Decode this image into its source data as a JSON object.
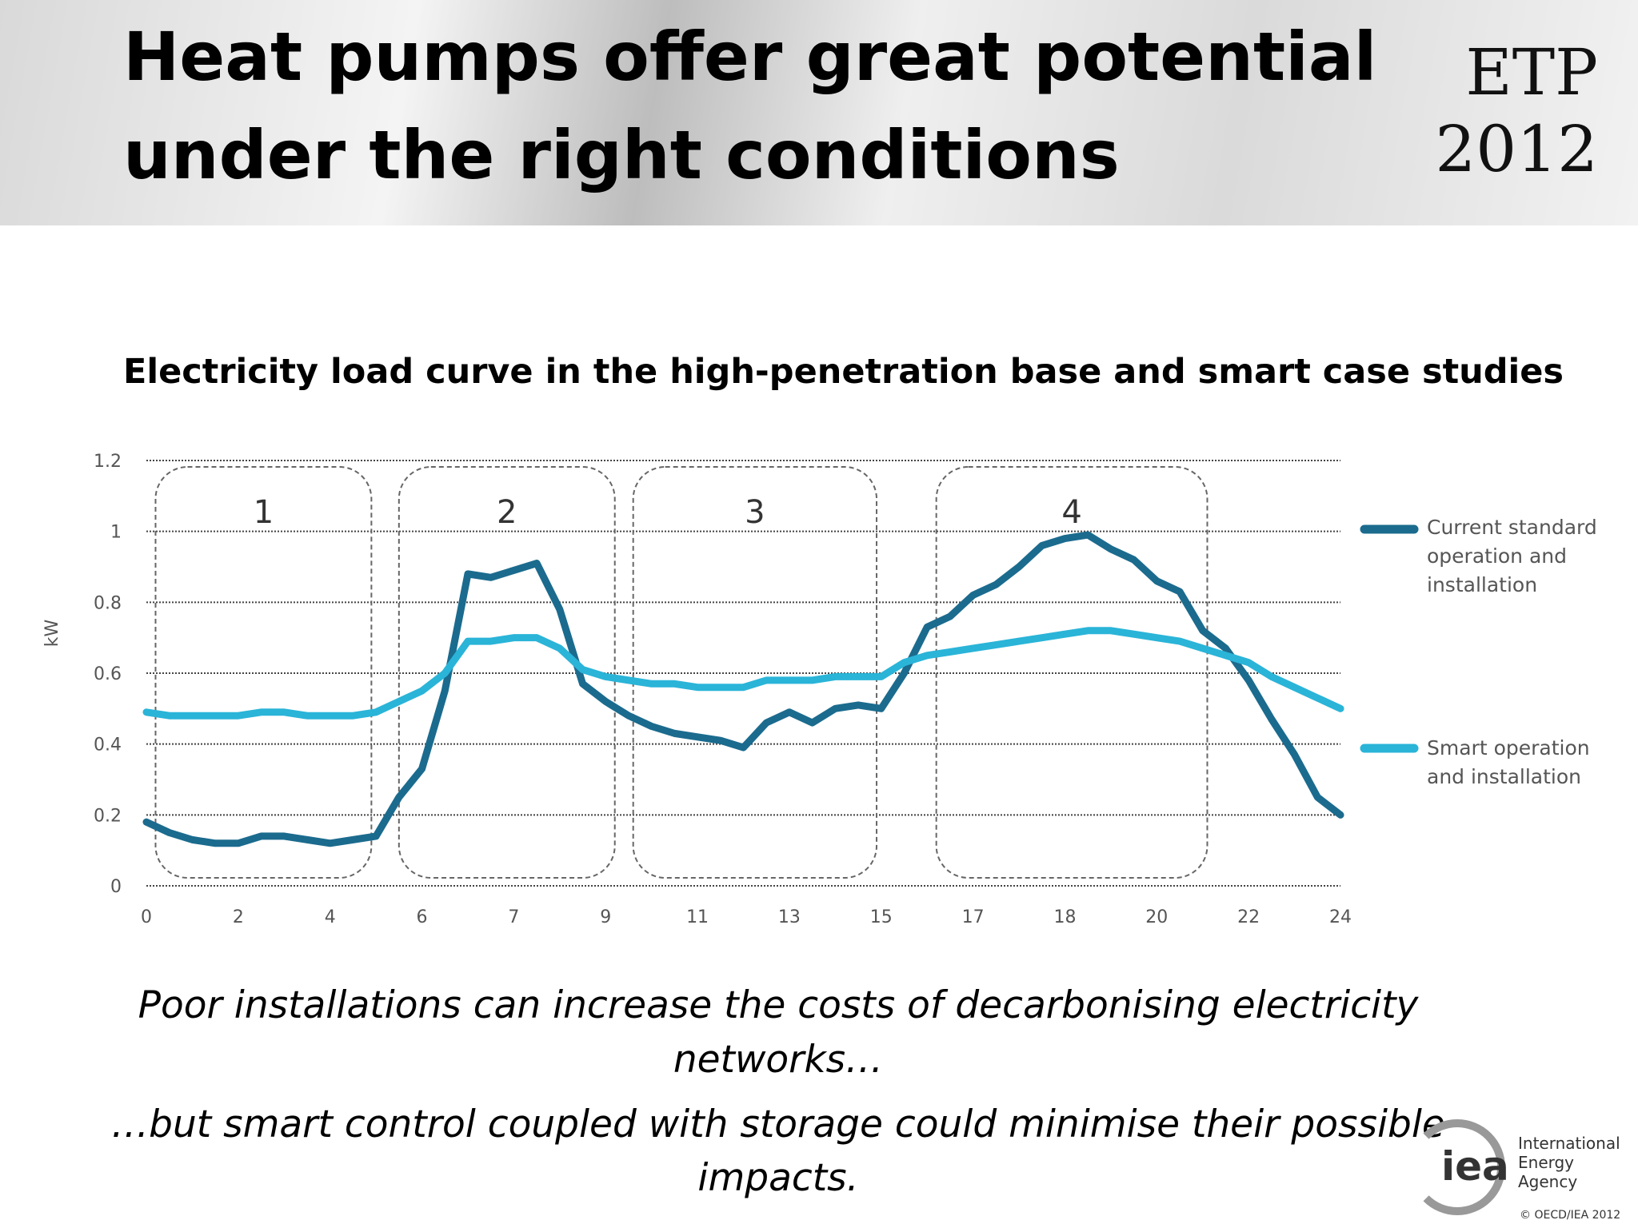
{
  "title": [
    "Heat pumps offer great potential",
    "under the right conditions"
  ],
  "logo": {
    "line1": "ETP",
    "line2": "2012"
  },
  "chart_data": {
    "type": "line",
    "title": "Electricity load curve in the high-penetration base and smart case studies",
    "y_label": "kW",
    "x": [
      0,
      0.25,
      0.5,
      0.75,
      1,
      1.25,
      1.5,
      1.75,
      2,
      2.25,
      2.5,
      2.75,
      3,
      3.25,
      3.5,
      3.75,
      4,
      4.25,
      4.5,
      4.75,
      5,
      5.25,
      5.5,
      5.75,
      6,
      6.25,
      6.5,
      6.75,
      7,
      7.25,
      7.5,
      7.75,
      8,
      8.25,
      8.5,
      8.75,
      9,
      9.25,
      9.5,
      9.75,
      10,
      10.25,
      10.5,
      10.75,
      11,
      11.25,
      11.5,
      11.75,
      12,
      12.25,
      12.5,
      12.75,
      13
    ],
    "xlim": [
      0,
      13
    ],
    "xticks": [
      0,
      {
        "value": 1,
        "label": "2"
      },
      {
        "value": 2,
        "label": "4"
      },
      {
        "value": 3,
        "label": "6"
      },
      {
        "value": 4,
        "label": "7"
      },
      {
        "value": 5,
        "label": "9"
      },
      {
        "value": 6,
        "label": "11"
      },
      {
        "value": 7,
        "label": "13"
      },
      {
        "value": 8,
        "label": "15"
      },
      {
        "value": 9,
        "label": "17"
      },
      {
        "value": 10,
        "label": "18"
      },
      {
        "value": 11,
        "label": "20"
      },
      {
        "value": 12,
        "label": "22"
      },
      {
        "value": 13,
        "label": "24"
      }
    ],
    "ylim": [
      0,
      1.2
    ],
    "yticks": [
      0,
      0.2,
      0.4,
      0.6,
      0.8,
      1,
      1.2
    ],
    "grid": true,
    "series": [
      {
        "name": "Current standard operation and installation",
        "color": "#1b6b8e",
        "values": [
          0.18,
          0.15,
          0.13,
          0.12,
          0.12,
          0.14,
          0.14,
          0.13,
          0.12,
          0.13,
          0.14,
          0.25,
          0.33,
          0.55,
          0.88,
          0.87,
          0.89,
          0.91,
          0.78,
          0.57,
          0.52,
          0.48,
          0.45,
          0.43,
          0.42,
          0.41,
          0.39,
          0.46,
          0.49,
          0.46,
          0.5,
          0.51,
          0.5,
          0.6,
          0.73,
          0.76,
          0.82,
          0.85,
          0.9,
          0.96,
          0.98,
          0.99,
          0.95,
          0.92,
          0.86,
          0.83,
          0.72,
          0.67,
          0.58,
          0.47,
          0.37,
          0.25,
          0.2
        ]
      },
      {
        "name": "Smart operation and installation",
        "color": "#2ab4d8",
        "values": [
          0.49,
          0.48,
          0.48,
          0.48,
          0.48,
          0.49,
          0.49,
          0.48,
          0.48,
          0.48,
          0.49,
          0.52,
          0.55,
          0.6,
          0.69,
          0.69,
          0.7,
          0.7,
          0.67,
          0.61,
          0.59,
          0.58,
          0.57,
          0.57,
          0.56,
          0.56,
          0.56,
          0.58,
          0.58,
          0.58,
          0.59,
          0.59,
          0.59,
          0.63,
          0.65,
          0.66,
          0.67,
          0.68,
          0.69,
          0.7,
          0.71,
          0.72,
          0.72,
          0.71,
          0.7,
          0.69,
          0.67,
          0.65,
          0.63,
          0.59,
          0.56,
          0.53,
          0.5
        ]
      }
    ],
    "annotations": [
      "1",
      "2",
      "3",
      "4"
    ]
  },
  "captions": [
    [
      "Poor installations can increase the costs of decarbonising electricity",
      "networks…"
    ],
    [
      "…but smart control coupled with storage could minimise their possible",
      "impacts."
    ]
  ],
  "footer": {
    "logo_text": "iea",
    "agency": [
      "International",
      "Energy Agency"
    ],
    "copyright": "© OECD/IEA 2012"
  }
}
